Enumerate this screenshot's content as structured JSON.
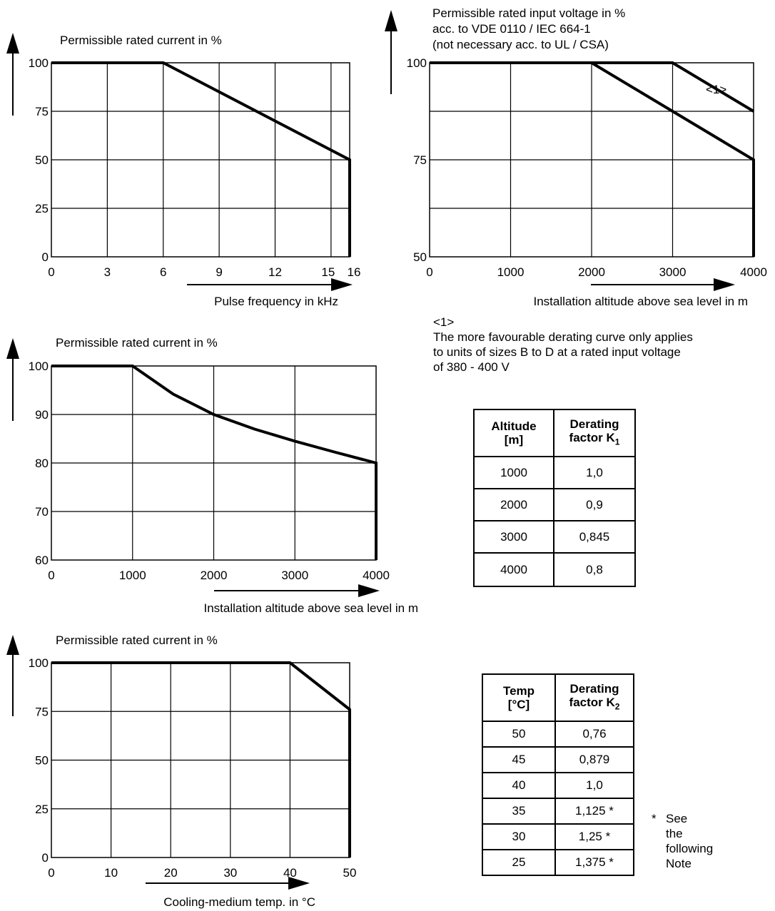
{
  "chart_data": [
    {
      "type": "line",
      "title": "Permissible rated current in %",
      "xlabel": "Pulse frequency in kHz",
      "x_ticks": [
        "0",
        "3",
        "6",
        "9",
        "12",
        "15",
        "16"
      ],
      "y_ticks": [
        "0",
        "25",
        "50",
        "75",
        "100"
      ],
      "xlim": [
        0,
        16
      ],
      "ylim": [
        0,
        100
      ],
      "series": [
        {
          "x": [
            0,
            6,
            16,
            16
          ],
          "y": [
            100,
            100,
            50,
            0
          ]
        }
      ]
    },
    {
      "type": "line",
      "title": "Permissible rated input voltage in %",
      "subtitle_lines": [
        "acc. to VDE 0110 / IEC 664-1",
        "(not necessary acc. to UL / CSA)"
      ],
      "xlabel": "Installation altitude above sea level in m",
      "x_ticks": [
        "0",
        "1000",
        "2000",
        "3000",
        "4000"
      ],
      "y_ticks": [
        "50",
        "75",
        "100"
      ],
      "xlim": [
        0,
        4000
      ],
      "ylim": [
        50,
        100
      ],
      "annotation": "<1>",
      "series": [
        {
          "x": [
            0,
            2000,
            4000,
            4000
          ],
          "y": [
            100,
            100,
            75,
            50
          ]
        },
        {
          "name": "<1>",
          "x": [
            0,
            3000,
            4000
          ],
          "y": [
            100,
            100,
            87.5
          ]
        }
      ]
    },
    {
      "type": "line",
      "title": "Permissible rated current in %",
      "xlabel": "Installation altitude above sea level in m",
      "x_ticks": [
        "0",
        "1000",
        "2000",
        "3000",
        "4000"
      ],
      "y_ticks": [
        "60",
        "70",
        "80",
        "90",
        "100"
      ],
      "xlim": [
        0,
        4000
      ],
      "ylim": [
        60,
        100
      ],
      "series": [
        {
          "x": [
            0,
            1000,
            1500,
            2000,
            2500,
            3000,
            3500,
            4000,
            4000
          ],
          "y": [
            100,
            100,
            94.2,
            90,
            87,
            84.5,
            82.2,
            80,
            60
          ]
        }
      ]
    },
    {
      "type": "line",
      "title": "Permissible rated current in %",
      "xlabel": "Cooling-medium temp. in °C",
      "x_ticks": [
        "0",
        "10",
        "20",
        "30",
        "40",
        "50"
      ],
      "y_ticks": [
        "0",
        "25",
        "50",
        "75",
        "100"
      ],
      "xlim": [
        0,
        50
      ],
      "ylim": [
        0,
        100
      ],
      "series": [
        {
          "x": [
            0,
            40,
            50,
            50
          ],
          "y": [
            100,
            100,
            76,
            0
          ]
        }
      ]
    }
  ],
  "note1": {
    "label": "<1>",
    "lines": [
      "The more favourable derating curve only applies",
      "to units of sizes B to D at a rated input voltage",
      "of 380 - 400 V"
    ]
  },
  "table_altitude": {
    "head1_l1": "Altitude",
    "head1_l2": "[m]",
    "head2_l1": "Derating",
    "head2_l2": "factor K",
    "head2_sub": "1",
    "rows": [
      {
        "a": "1000",
        "b": "1,0"
      },
      {
        "a": "2000",
        "b": "0,9"
      },
      {
        "a": "3000",
        "b": "0,845"
      },
      {
        "a": "4000",
        "b": "0,8"
      }
    ]
  },
  "table_temp": {
    "head1_l1": "Temp",
    "head1_l2": "[°C]",
    "head2_l1": "Derating",
    "head2_l2": "factor K",
    "head2_sub": "2",
    "rows": [
      {
        "a": "50",
        "b": "0,76"
      },
      {
        "a": "45",
        "b": "0,879"
      },
      {
        "a": "40",
        "b": "1,0"
      },
      {
        "a": "35",
        "b": "1,125 *"
      },
      {
        "a": "30",
        "b": "1,25 *"
      },
      {
        "a": "25",
        "b": "1,375 *"
      }
    ]
  },
  "footnote": {
    "mark": "*",
    "lines": [
      "See",
      "the",
      "following",
      "Note"
    ]
  }
}
